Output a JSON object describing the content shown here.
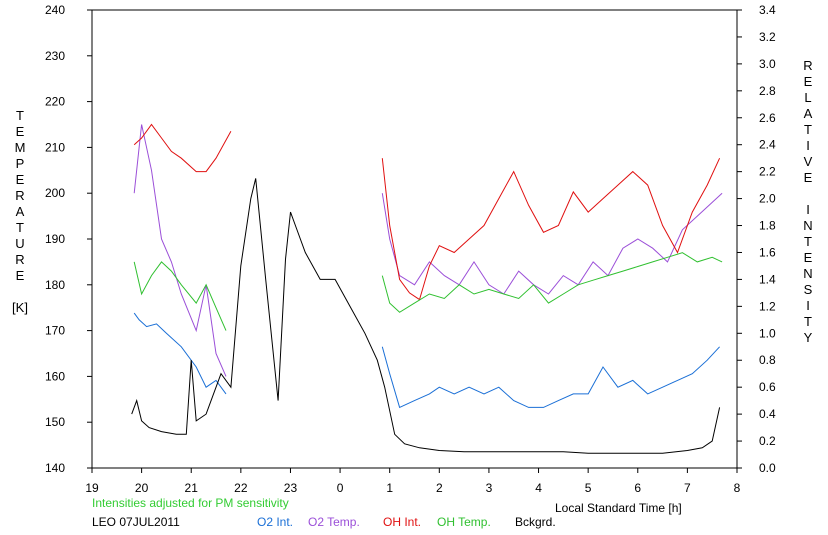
{
  "chart_data": {
    "type": "line",
    "x_axis": {
      "label": "Local Standard Time [h]",
      "ticks": [
        "19",
        "20",
        "21",
        "22",
        "23",
        "0",
        "1",
        "2",
        "3",
        "4",
        "5",
        "6",
        "7",
        "8"
      ]
    },
    "y_left": {
      "title_letters": [
        "T",
        "E",
        "M",
        "P",
        "E",
        "R",
        "A",
        "T",
        "U",
        "R",
        "E"
      ],
      "unit": "[K]",
      "range": [
        140,
        240
      ],
      "ticks": [
        "140",
        "150",
        "160",
        "170",
        "180",
        "190",
        "200",
        "210",
        "220",
        "230",
        "240"
      ]
    },
    "y_right": {
      "title_word1": [
        "R",
        "E",
        "L",
        "A",
        "T",
        "I",
        "V",
        "E"
      ],
      "title_word2": [
        "I",
        "N",
        "T",
        "E",
        "N",
        "S",
        "I",
        "T",
        "Y"
      ],
      "range": [
        0,
        3.4
      ],
      "ticks": [
        "0.0",
        "0.2",
        "0.4",
        "0.6",
        "0.8",
        "1.0",
        "1.2",
        "1.4",
        "1.6",
        "1.8",
        "2.0",
        "2.2",
        "2.4",
        "2.6",
        "2.8",
        "3.0",
        "3.2",
        "3.4"
      ]
    },
    "note": "Intensities adjusted for PM sensitivity",
    "station_label": "LEO 07JUL2011",
    "series": [
      {
        "name": "O2 Int.",
        "color": "#1a6fd6",
        "axis": "right",
        "points": [
          [
            19.85,
            1.15
          ],
          [
            19.95,
            1.1
          ],
          [
            20.1,
            1.05
          ],
          [
            20.3,
            1.07
          ],
          [
            20.5,
            1.0
          ],
          [
            20.8,
            0.9
          ],
          [
            21.1,
            0.75
          ],
          [
            21.3,
            0.6
          ],
          [
            21.5,
            0.65
          ],
          [
            21.7,
            0.55
          ],
          [
            0.85,
            0.9
          ],
          [
            1.0,
            0.7
          ],
          [
            1.2,
            0.45
          ],
          [
            1.5,
            0.5
          ],
          [
            1.8,
            0.55
          ],
          [
            2.0,
            0.6
          ],
          [
            2.3,
            0.55
          ],
          [
            2.6,
            0.6
          ],
          [
            2.9,
            0.55
          ],
          [
            3.2,
            0.6
          ],
          [
            3.5,
            0.5
          ],
          [
            3.8,
            0.45
          ],
          [
            4.1,
            0.45
          ],
          [
            4.4,
            0.5
          ],
          [
            4.7,
            0.55
          ],
          [
            5.0,
            0.55
          ],
          [
            5.3,
            0.75
          ],
          [
            5.6,
            0.6
          ],
          [
            5.9,
            0.65
          ],
          [
            6.2,
            0.55
          ],
          [
            6.5,
            0.6
          ],
          [
            6.8,
            0.65
          ],
          [
            7.1,
            0.7
          ],
          [
            7.4,
            0.8
          ],
          [
            7.65,
            0.9
          ]
        ]
      },
      {
        "name": "O2 Temp.",
        "color": "#9b4fd8",
        "axis": "left",
        "points": [
          [
            19.85,
            200
          ],
          [
            20.0,
            215
          ],
          [
            20.2,
            205
          ],
          [
            20.4,
            190
          ],
          [
            20.6,
            185
          ],
          [
            20.8,
            178
          ],
          [
            21.1,
            170
          ],
          [
            21.3,
            180
          ],
          [
            21.5,
            165
          ],
          [
            21.7,
            160
          ],
          [
            0.85,
            200
          ],
          [
            1.0,
            190
          ],
          [
            1.2,
            182
          ],
          [
            1.5,
            180
          ],
          [
            1.8,
            185
          ],
          [
            2.1,
            182
          ],
          [
            2.4,
            180
          ],
          [
            2.7,
            185
          ],
          [
            3.0,
            180
          ],
          [
            3.3,
            178
          ],
          [
            3.6,
            183
          ],
          [
            3.9,
            180
          ],
          [
            4.2,
            178
          ],
          [
            4.5,
            182
          ],
          [
            4.8,
            180
          ],
          [
            5.1,
            185
          ],
          [
            5.4,
            182
          ],
          [
            5.7,
            188
          ],
          [
            6.0,
            190
          ],
          [
            6.3,
            188
          ],
          [
            6.6,
            185
          ],
          [
            6.9,
            192
          ],
          [
            7.2,
            195
          ],
          [
            7.5,
            198
          ],
          [
            7.7,
            200
          ]
        ]
      },
      {
        "name": "OH Int.",
        "color": "#e01010",
        "axis": "right",
        "points": [
          [
            19.85,
            2.4
          ],
          [
            20.0,
            2.45
          ],
          [
            20.2,
            2.55
          ],
          [
            20.4,
            2.45
          ],
          [
            20.6,
            2.35
          ],
          [
            20.8,
            2.3
          ],
          [
            21.1,
            2.2
          ],
          [
            21.3,
            2.2
          ],
          [
            21.5,
            2.3
          ],
          [
            21.8,
            2.5
          ],
          [
            0.85,
            2.3
          ],
          [
            1.0,
            1.8
          ],
          [
            1.2,
            1.4
          ],
          [
            1.4,
            1.3
          ],
          [
            1.6,
            1.25
          ],
          [
            1.8,
            1.5
          ],
          [
            2.0,
            1.65
          ],
          [
            2.3,
            1.6
          ],
          [
            2.6,
            1.7
          ],
          [
            2.9,
            1.8
          ],
          [
            3.2,
            2.0
          ],
          [
            3.5,
            2.2
          ],
          [
            3.8,
            1.95
          ],
          [
            4.1,
            1.75
          ],
          [
            4.4,
            1.8
          ],
          [
            4.7,
            2.05
          ],
          [
            5.0,
            1.9
          ],
          [
            5.3,
            2.0
          ],
          [
            5.6,
            2.1
          ],
          [
            5.9,
            2.2
          ],
          [
            6.2,
            2.1
          ],
          [
            6.5,
            1.8
          ],
          [
            6.8,
            1.6
          ],
          [
            7.1,
            1.9
          ],
          [
            7.4,
            2.1
          ],
          [
            7.65,
            2.3
          ]
        ]
      },
      {
        "name": "OH Temp.",
        "color": "#30c030",
        "axis": "left",
        "points": [
          [
            19.85,
            185
          ],
          [
            20.0,
            178
          ],
          [
            20.2,
            182
          ],
          [
            20.4,
            185
          ],
          [
            20.6,
            183
          ],
          [
            20.8,
            180
          ],
          [
            21.1,
            176
          ],
          [
            21.3,
            180
          ],
          [
            21.5,
            175
          ],
          [
            21.7,
            170
          ],
          [
            0.85,
            182
          ],
          [
            1.0,
            176
          ],
          [
            1.2,
            174
          ],
          [
            1.5,
            176
          ],
          [
            1.8,
            178
          ],
          [
            2.1,
            177
          ],
          [
            2.4,
            180
          ],
          [
            2.7,
            178
          ],
          [
            3.0,
            179
          ],
          [
            3.3,
            178
          ],
          [
            3.6,
            177
          ],
          [
            3.9,
            180
          ],
          [
            4.2,
            176
          ],
          [
            4.5,
            178
          ],
          [
            4.8,
            180
          ],
          [
            5.1,
            181
          ],
          [
            5.4,
            182
          ],
          [
            5.7,
            183
          ],
          [
            6.0,
            184
          ],
          [
            6.3,
            185
          ],
          [
            6.6,
            186
          ],
          [
            6.9,
            187
          ],
          [
            7.2,
            185
          ],
          [
            7.5,
            186
          ],
          [
            7.7,
            185
          ]
        ]
      },
      {
        "name": "Bckgrd.",
        "color": "#000000",
        "axis": "right",
        "points": [
          [
            19.8,
            0.4
          ],
          [
            19.9,
            0.5
          ],
          [
            20.0,
            0.35
          ],
          [
            20.15,
            0.3
          ],
          [
            20.4,
            0.27
          ],
          [
            20.7,
            0.25
          ],
          [
            20.9,
            0.25
          ],
          [
            21.0,
            0.8
          ],
          [
            21.1,
            0.35
          ],
          [
            21.3,
            0.4
          ],
          [
            21.6,
            0.7
          ],
          [
            21.8,
            0.6
          ],
          [
            22.0,
            1.5
          ],
          [
            22.2,
            2.0
          ],
          [
            22.3,
            2.15
          ],
          [
            22.5,
            1.4
          ],
          [
            22.75,
            0.5
          ],
          [
            22.9,
            1.55
          ],
          [
            23.0,
            1.9
          ],
          [
            23.1,
            1.8
          ],
          [
            23.3,
            1.6
          ],
          [
            23.6,
            1.4
          ],
          [
            23.9,
            1.4
          ],
          [
            24.2,
            1.2
          ],
          [
            24.5,
            1.0
          ],
          [
            24.75,
            0.8
          ],
          [
            24.9,
            0.6
          ],
          [
            25.1,
            0.25
          ],
          [
            25.3,
            0.18
          ],
          [
            25.6,
            0.15
          ],
          [
            26.0,
            0.13
          ],
          [
            26.5,
            0.12
          ],
          [
            27.0,
            0.12
          ],
          [
            27.5,
            0.12
          ],
          [
            28.0,
            0.12
          ],
          [
            28.5,
            0.12
          ],
          [
            29.0,
            0.11
          ],
          [
            29.5,
            0.11
          ],
          [
            30.0,
            0.11
          ],
          [
            30.5,
            0.11
          ],
          [
            31.0,
            0.13
          ],
          [
            31.3,
            0.15
          ],
          [
            31.5,
            0.2
          ],
          [
            31.65,
            0.45
          ]
        ]
      }
    ]
  }
}
